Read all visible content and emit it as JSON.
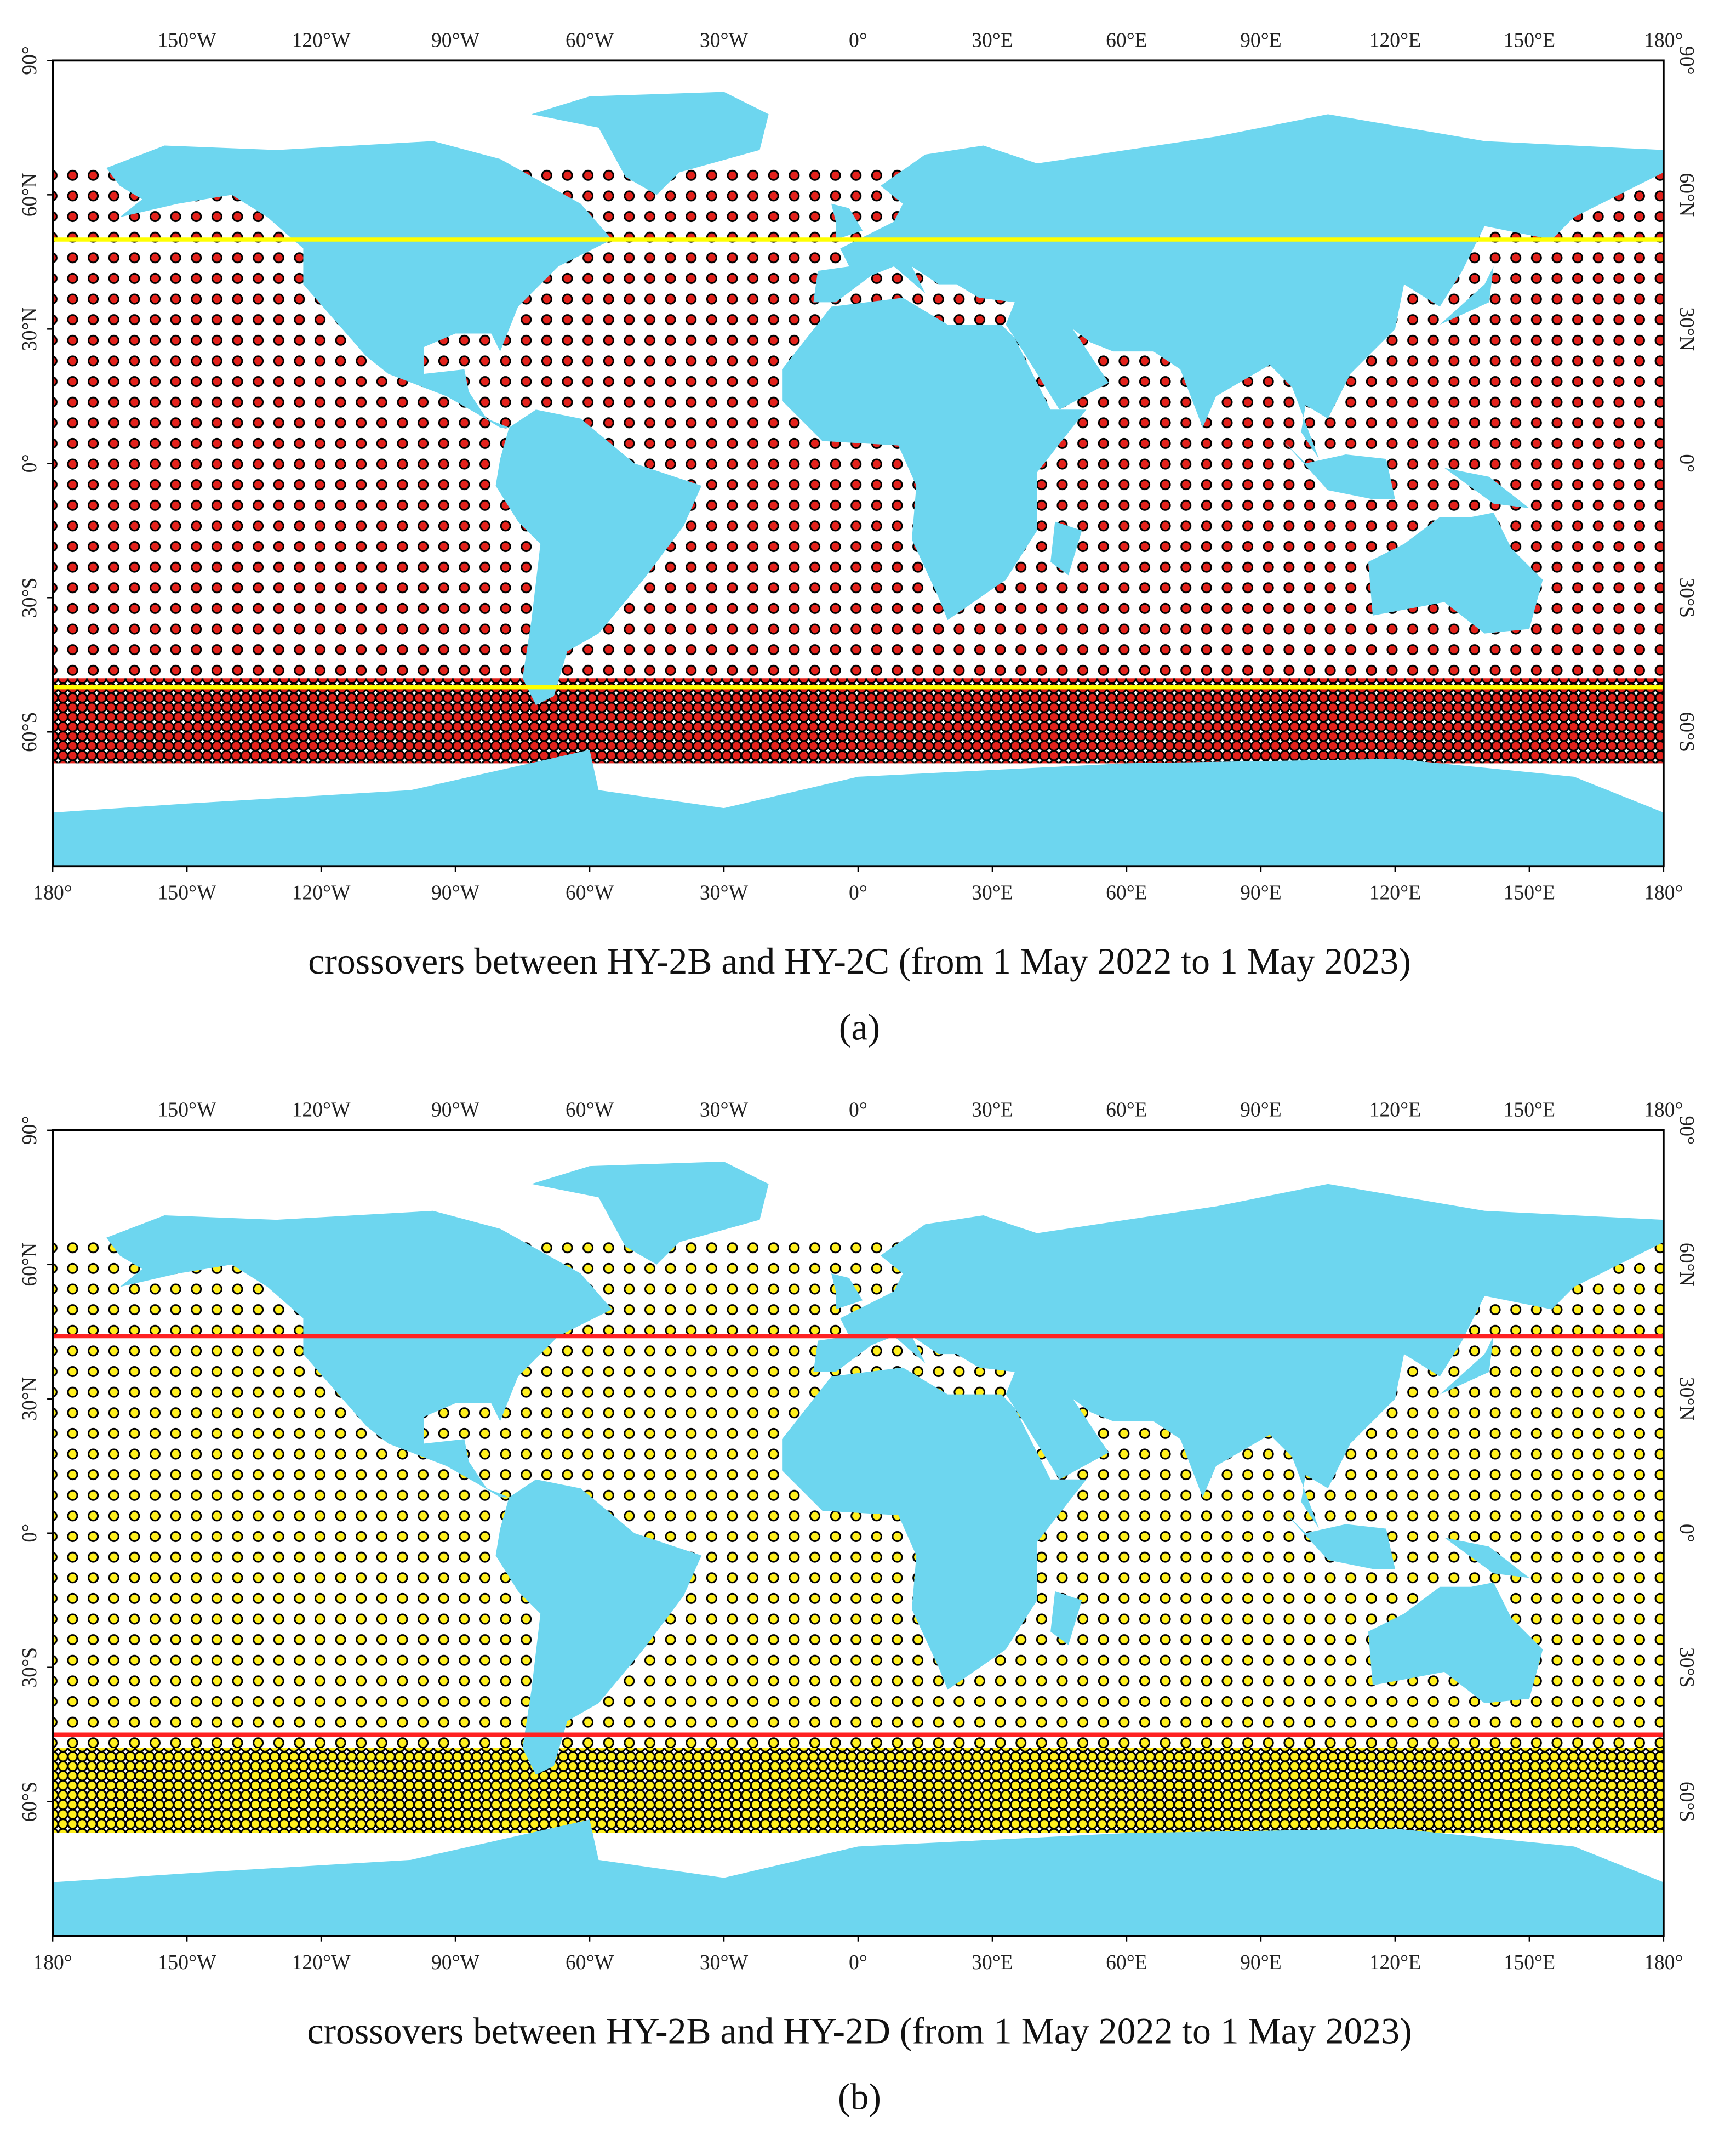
{
  "maps": [
    {
      "panel": "(a)",
      "caption": "crossovers between HY-2B and HY-2C (from 1 May 2022 to 1 May 2023)",
      "marker_color": "#e3221c",
      "land_color": "#6dd6ef",
      "lines": {
        "color": "#ffff00",
        "latitudes": [
          50,
          -50
        ]
      },
      "lon_ticks": [
        {
          "value": -180,
          "label": "180°"
        },
        {
          "value": -150,
          "label": "150°W"
        },
        {
          "value": -120,
          "label": "120°W"
        },
        {
          "value": -90,
          "label": "90°W"
        },
        {
          "value": -60,
          "label": "60°W"
        },
        {
          "value": -30,
          "label": "30°W"
        },
        {
          "value": 0,
          "label": "0°"
        },
        {
          "value": 30,
          "label": "30°E"
        },
        {
          "value": 60,
          "label": "60°E"
        },
        {
          "value": 90,
          "label": "90°E"
        },
        {
          "value": 120,
          "label": "120°E"
        },
        {
          "value": 150,
          "label": "150°E"
        },
        {
          "value": 180,
          "label": "180°"
        }
      ],
      "lat_ticks": [
        {
          "value": 90,
          "label": "90°"
        },
        {
          "value": 60,
          "label": "60°N"
        },
        {
          "value": 30,
          "label": "30°N"
        },
        {
          "value": 0,
          "label": "0°"
        },
        {
          "value": -30,
          "label": "30°S"
        },
        {
          "value": -60,
          "label": "60°S"
        }
      ]
    },
    {
      "panel": "(b)",
      "caption": "crossovers between HY-2B and HY-2D (from 1 May 2022 to 1 May 2023)",
      "marker_color": "#fff01e",
      "land_color": "#6dd6ef",
      "lines": {
        "color": "#ff2222",
        "latitudes": [
          44,
          -45
        ]
      },
      "lon_ticks": [
        {
          "value": -180,
          "label": "180°"
        },
        {
          "value": -150,
          "label": "150°W"
        },
        {
          "value": -120,
          "label": "120°W"
        },
        {
          "value": -90,
          "label": "90°W"
        },
        {
          "value": -60,
          "label": "60°W"
        },
        {
          "value": -30,
          "label": "30°W"
        },
        {
          "value": 0,
          "label": "0°"
        },
        {
          "value": 30,
          "label": "30°E"
        },
        {
          "value": 60,
          "label": "60°E"
        },
        {
          "value": 90,
          "label": "90°E"
        },
        {
          "value": 120,
          "label": "120°E"
        },
        {
          "value": 150,
          "label": "150°E"
        },
        {
          "value": 180,
          "label": "180°"
        }
      ],
      "lat_ticks": [
        {
          "value": 90,
          "label": "90°"
        },
        {
          "value": 60,
          "label": "60°N"
        },
        {
          "value": 30,
          "label": "30°N"
        },
        {
          "value": 0,
          "label": "0°"
        },
        {
          "value": -30,
          "label": "30°S"
        },
        {
          "value": -60,
          "label": "60°S"
        }
      ]
    }
  ]
}
